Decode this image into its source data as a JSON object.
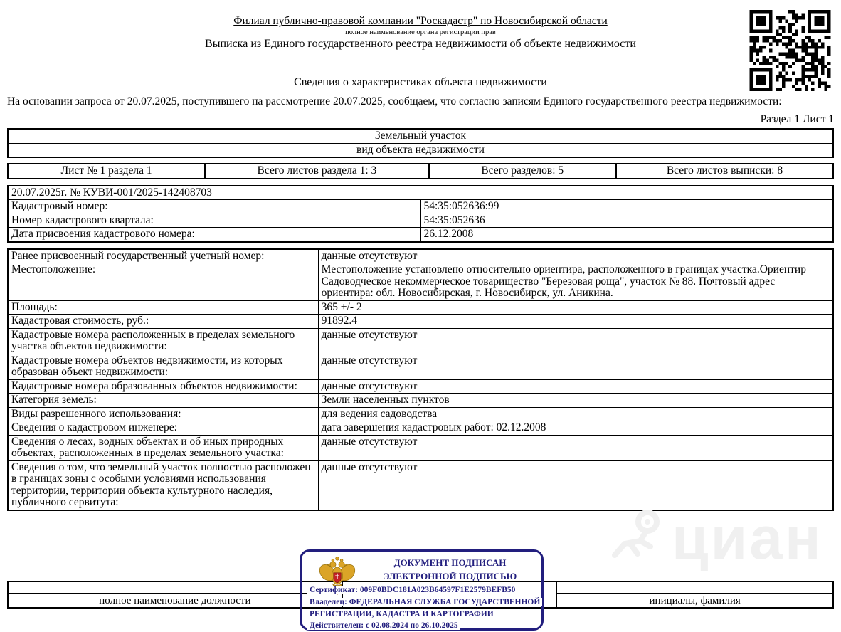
{
  "header": {
    "org_title": "Филиал публично-правовой компании \"Роскадастр\" по Новосибирской области",
    "org_subtitle": "полное наименование органа регистрации прав",
    "doc_title": "Выписка из Единого государственного реестра недвижимости об объекте недвижимости",
    "section_title": "Сведения о характеристиках объекта недвижимости",
    "intro": "На  основании запроса от 20.07.2025, поступившего на рассмотрение 20.07.2025, сообщаем, что согласно записям Единого государственного реестра недвижимости:",
    "section_marker": "Раздел 1 Лист 1"
  },
  "object_type_table": {
    "type_value": "Земельный участок",
    "type_caption": "вид объекта недвижимости"
  },
  "sheet_info": {
    "cells": [
      "Лист № 1 раздела 1",
      "Всего листов раздела 1: 3",
      "Всего разделов: 5",
      "Всего листов выписки: 8"
    ]
  },
  "request_table": {
    "header": "20.07.2025г. № КУВИ-001/2025-142408703",
    "rows": [
      {
        "label": "Кадастровый номер:",
        "value": "54:35:052636:99"
      },
      {
        "label": "Номер кадастрового квартала:",
        "value": "54:35:052636"
      },
      {
        "label": "Дата присвоения кадастрового номера:",
        "value": "26.12.2008"
      }
    ]
  },
  "details_table": {
    "rows": [
      {
        "label": "Ранее присвоенный государственный учетный номер:",
        "value": "данные отсутствуют"
      },
      {
        "label": "Местоположение:",
        "value": "Местоположение установлено относительно ориентира, расположенного в границах участка.Ориентир Садоводческое некоммерческое товарищество \"Березовая роща\", участок № 88. Почтовый адрес ориентира: обл. Новосибирская, г. Новосибирск, ул. Аникина."
      },
      {
        "label": "Площадь:",
        "value": "365 +/- 2"
      },
      {
        "label": "Кадастровая стоимость, руб.:",
        "value": "91892.4"
      },
      {
        "label": "Кадастровые номера расположенных в пределах земельного участка объектов недвижимости:",
        "value": "данные отсутствуют"
      },
      {
        "label": "Кадастровые номера объектов недвижимости, из которых образован объект недвижимости:",
        "value": "данные отсутствуют"
      },
      {
        "label": "Кадастровые номера образованных объектов недвижимости:",
        "value": "данные отсутствуют"
      },
      {
        "label": "Категория земель:",
        "value": "Земли населенных пунктов"
      },
      {
        "label": "Виды разрешенного использования:",
        "value": "для ведения садоводства"
      },
      {
        "label": "Сведения о кадастровом инженере:",
        "value": "дата завершения кадастровых работ: 02.12.2008"
      },
      {
        "label": "Сведения о лесах, водных объектах и об иных природных объектах, расположенных в пределах земельного участка:",
        "value": "данные отсутствуют"
      },
      {
        "label": "Сведения о том, что земельный участок полностью расположен в границах зоны с особыми условиями использования территории, территории объекта культурного наследия, публичного сервитута:",
        "value": "данные отсутствуют"
      }
    ]
  },
  "signature_footer": {
    "left_label": "полное наименование должности",
    "right_label": "инициалы, фамилия"
  },
  "stamp": {
    "line1": "ДОКУМЕНТ ПОДПИСАН",
    "line2": "ЭЛЕКТРОННОЙ ПОДПИСЬЮ",
    "certificate": "Сертификат: 009F0BDC181A023B64597F1E2579BEFB50",
    "owner_line1": "Владелец: ФЕДЕРАЛЬНАЯ СЛУЖБА ГОСУДАРСТВЕННОЙ",
    "owner_line2": "РЕГИСТРАЦИИ, КАДАСТРА И КАРТОГРАФИИ",
    "validity": "Действителен: с 02.08.2024 по 26.10.2025",
    "border_color": "#221e7e"
  },
  "watermark": {
    "text": "циан"
  },
  "colors": {
    "stamp_navy": "#221e7e",
    "eagle_gold": "#dba427",
    "shield_red": "#c42127",
    "watermark_gray": "#f0f0f0"
  }
}
